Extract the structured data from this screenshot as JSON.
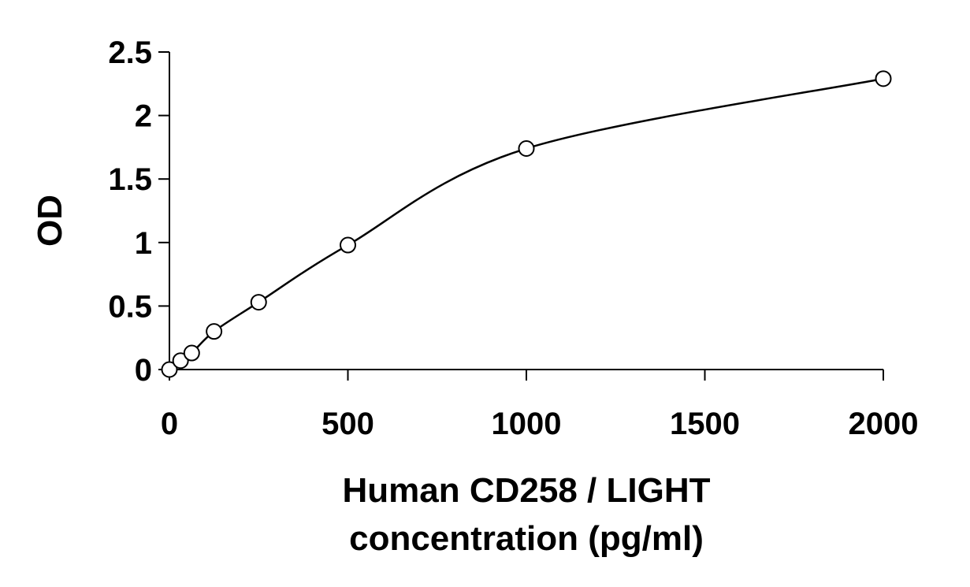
{
  "chart_data": {
    "type": "scatter",
    "title": "",
    "xlabel_lines": [
      "Human CD258 / LIGHT",
      "concentration (pg/ml)"
    ],
    "ylabel": "OD",
    "xlim": [
      0,
      2000
    ],
    "ylim": [
      0,
      2.5
    ],
    "x_ticks": [
      "0",
      "500",
      "1000",
      "1500",
      "2000"
    ],
    "y_ticks": [
      "0",
      "0.5",
      "1",
      "1.5",
      "2",
      "2.5"
    ],
    "grid": false,
    "legend": "none",
    "series": [
      {
        "marker": "open-circle",
        "fit": "smooth-curve",
        "points": [
          {
            "x": 0,
            "y": 0.0
          },
          {
            "x": 31.25,
            "y": 0.07
          },
          {
            "x": 62.5,
            "y": 0.13
          },
          {
            "x": 125,
            "y": 0.3
          },
          {
            "x": 250,
            "y": 0.53
          },
          {
            "x": 500,
            "y": 0.98
          },
          {
            "x": 1000,
            "y": 1.74
          },
          {
            "x": 2000,
            "y": 2.29
          }
        ]
      }
    ]
  }
}
